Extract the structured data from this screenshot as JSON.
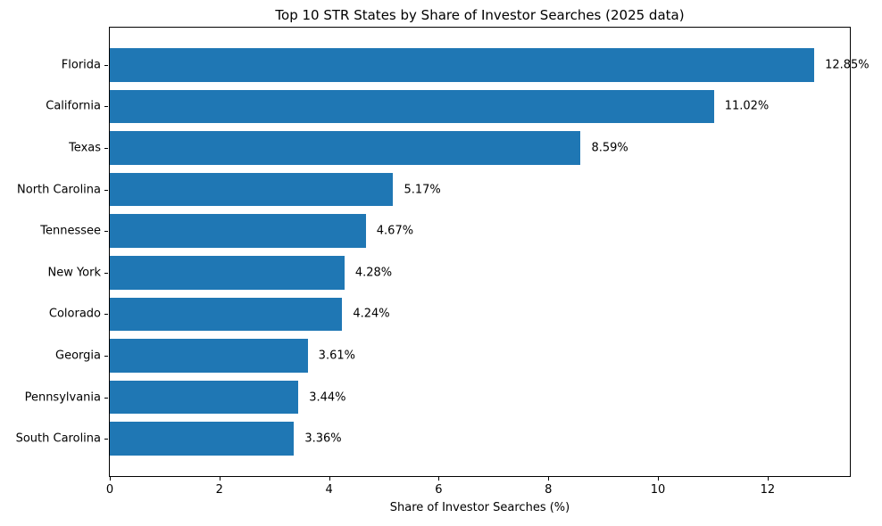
{
  "chart_data": {
    "type": "bar",
    "orientation": "horizontal",
    "title": "Top 10 STR States by Share of Investor Searches (2025 data)",
    "xlabel": "Share of Investor Searches (%)",
    "ylabel": "",
    "categories": [
      "Florida",
      "California",
      "Texas",
      "North Carolina",
      "Tennessee",
      "New York",
      "Colorado",
      "Georgia",
      "Pennsylvania",
      "South Carolina"
    ],
    "values": [
      12.85,
      11.02,
      8.59,
      5.17,
      4.67,
      4.28,
      4.24,
      3.61,
      3.44,
      3.36
    ],
    "value_labels": [
      "12.85%",
      "11.02%",
      "8.59%",
      "5.17%",
      "4.67%",
      "4.28%",
      "4.24%",
      "3.61%",
      "3.44%",
      "3.36%"
    ],
    "xlim": [
      0,
      13.5
    ],
    "xticks": [
      0,
      2,
      4,
      6,
      8,
      10,
      12
    ],
    "xtick_labels": [
      "0",
      "2",
      "4",
      "6",
      "8",
      "10",
      "12"
    ],
    "bar_color": "#1f77b4",
    "text_color": "#000000",
    "grid": false,
    "legend": null,
    "frame": "full-box"
  }
}
